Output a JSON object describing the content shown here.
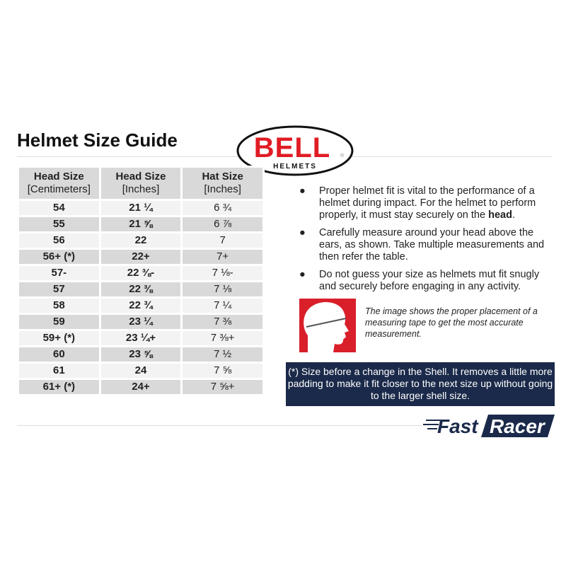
{
  "title": "Helmet Size Guide",
  "logo": {
    "brand": "BELL",
    "sub": "HELMETS",
    "registered": "®",
    "color": "#e01c24"
  },
  "table": {
    "headers": [
      {
        "top": "Head Size",
        "bottom": "[Centimeters]"
      },
      {
        "top": "Head Size",
        "bottom": "[Inches]"
      },
      {
        "top": "Hat Size",
        "bottom": "[Inches]"
      }
    ],
    "rows": [
      [
        "54",
        "21 ¼",
        "6 ¾"
      ],
      [
        "55",
        "21 ⅝",
        "6 ⅞"
      ],
      [
        "56",
        "22",
        "7"
      ],
      [
        "56+ (*)",
        "22+",
        "7+"
      ],
      [
        "57-",
        "22 ⅜-",
        "7 ⅛-"
      ],
      [
        "57",
        "22 ⅜",
        "7 ⅛"
      ],
      [
        "58",
        "22 ¾",
        "7 ¼"
      ],
      [
        "59",
        "23 ¼",
        "7 ⅜"
      ],
      [
        "59+ (*)",
        "23 ¼+",
        "7 ⅜+"
      ],
      [
        "60",
        "23 ⅝",
        "7 ½"
      ],
      [
        "61",
        "24",
        "7 ⅝"
      ],
      [
        "61+ (*)",
        "24+",
        "7 ⅝+"
      ]
    ]
  },
  "bullets": [
    {
      "text": "Proper helmet fit is vital to the performance of a helmet during impact. For the helmet to perform properly, it must stay securely on the ",
      "bold": "head",
      "end": "."
    },
    {
      "text": "Carefully measure around your head above the ears, as shown. Take multiple measurements and then refer the table.",
      "bold": "",
      "end": ""
    },
    {
      "text": "Do not guess your size as helmets mut fit snugly and securely before engaging in any activity.",
      "bold": "",
      "end": ""
    }
  ],
  "caption": "The image shows the proper placement of a measuring tape to get the most accurate measurement.",
  "note": "(*) Size before a change in the Shell. It removes a little more padding to make it fit closer to the next size up without going to the larger shell size.",
  "footer_logo": {
    "part1": "Fast",
    "part2": "Racer",
    "color": "#1b2a4a"
  }
}
